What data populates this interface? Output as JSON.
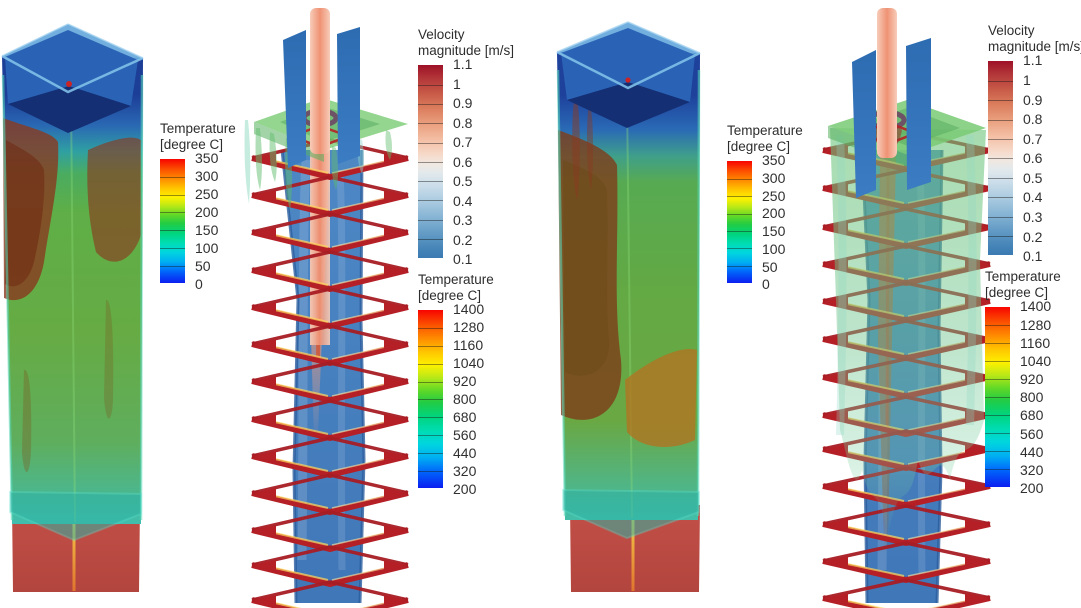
{
  "background": "#ffffff",
  "legends": {
    "temp_left": {
      "title_line1": "Temperature",
      "title_line2": "[degree C]",
      "ticks": [
        "350",
        "300",
        "250",
        "200",
        "150",
        "100",
        "50",
        "0"
      ]
    },
    "vel_mid": {
      "title_line1": "Velocity",
      "title_line2": "magnitude [m/s]",
      "ticks": [
        "1.1",
        "1",
        "0.9",
        "0.8",
        "0.7",
        "0.6",
        "0.5",
        "0.4",
        "0.3",
        "0.2",
        "0.1"
      ]
    },
    "temp_mid": {
      "title_line1": "Temperature",
      "title_line2": "[degree C]",
      "ticks": [
        "1400",
        "1280",
        "1160",
        "1040",
        "920",
        "800",
        "680",
        "560",
        "440",
        "320",
        "200"
      ]
    },
    "temp_right": {
      "title_line1": "Temperature",
      "title_line2": "[degree C]",
      "ticks": [
        "350",
        "300",
        "250",
        "200",
        "150",
        "100",
        "50",
        "0"
      ]
    },
    "vel_right": {
      "title_line1": "Velocity",
      "title_line2": "magnitude [m/s]",
      "ticks": [
        "1.1",
        "1",
        "0.9",
        "0.8",
        "0.7",
        "0.6",
        "0.5",
        "0.4",
        "0.3",
        "0.2",
        "0.1"
      ]
    },
    "temp_far_right": {
      "title_line1": "Temperature",
      "title_line2": "[degree C]",
      "ticks": [
        "1400",
        "1280",
        "1160",
        "1040",
        "920",
        "800",
        "680",
        "560",
        "440",
        "320",
        "200"
      ]
    }
  },
  "colors": {
    "hot_red": "#b51f26",
    "jet_salmon": "#ef9274",
    "slice_blue": "#4d88c5",
    "isosurface_green": "#79ca74",
    "base_red": "#bb4a42",
    "label_text": "#303030"
  },
  "chart_data": [
    {
      "type": "heatmap",
      "panel": "left-duct-outer-wall-temperature",
      "title": "Temperature [degree C]",
      "colormap": "rainbow",
      "range": [
        0,
        350
      ],
      "scale_ticks": [
        350,
        300,
        250,
        200,
        150,
        100,
        50,
        0
      ]
    },
    {
      "type": "heatmap",
      "panel": "left-center-slice-velocity",
      "title": "Velocity magnitude [m/s]",
      "colormap": "cool-to-warm",
      "range": [
        0.1,
        1.1
      ],
      "scale_ticks": [
        1.1,
        1,
        0.9,
        0.8,
        0.7,
        0.6,
        0.5,
        0.4,
        0.3,
        0.2,
        0.1
      ]
    },
    {
      "type": "heatmap",
      "panel": "left-cross-section-rings-temperature",
      "title": "Temperature [degree C]",
      "colormap": "rainbow",
      "range": [
        200,
        1400
      ],
      "scale_ticks": [
        1400,
        1280,
        1160,
        1040,
        920,
        800,
        680,
        560,
        440,
        320,
        200
      ]
    },
    {
      "type": "heatmap",
      "panel": "right-duct-outer-wall-temperature",
      "title": "Temperature [degree C]",
      "colormap": "rainbow",
      "range": [
        0,
        350
      ],
      "scale_ticks": [
        350,
        300,
        250,
        200,
        150,
        100,
        50,
        0
      ]
    },
    {
      "type": "heatmap",
      "panel": "right-center-slice-velocity",
      "title": "Velocity magnitude [m/s]",
      "colormap": "cool-to-warm",
      "range": [
        0.1,
        1.1
      ],
      "scale_ticks": [
        1.1,
        1,
        0.9,
        0.8,
        0.7,
        0.6,
        0.5,
        0.4,
        0.3,
        0.2,
        0.1
      ]
    },
    {
      "type": "heatmap",
      "panel": "right-cross-section-rings-temperature",
      "title": "Temperature [degree C]",
      "colormap": "rainbow",
      "range": [
        200,
        1400
      ],
      "scale_ticks": [
        1400,
        1280,
        1160,
        1040,
        920,
        800,
        680,
        560,
        440,
        320,
        200
      ]
    }
  ]
}
